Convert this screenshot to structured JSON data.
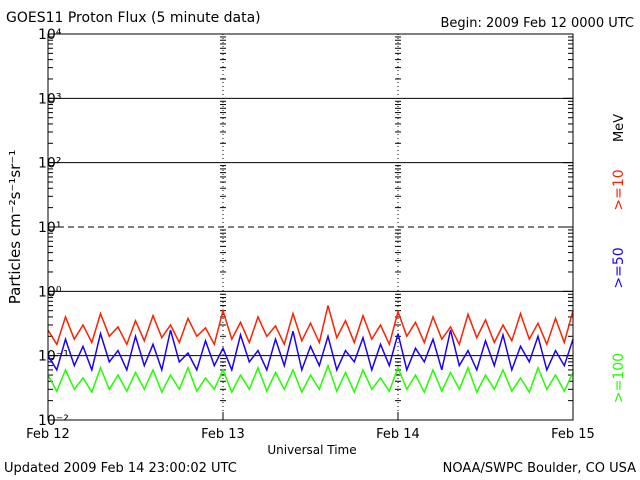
{
  "chart_data": {
    "type": "line",
    "title": "GOES11 Proton Flux (5 minute data)",
    "subtitle": "Begin: 2009 Feb 12 0000 UTC",
    "xlabel": "Universal Time",
    "ylabel": "Particles cm⁻²s⁻¹sr⁻¹",
    "legend_unit": "MeV",
    "footer_left": "Updated 2009 Feb 14 23:00:02 UTC",
    "footer_right": "NOAA/SWPC Boulder, CO USA",
    "log_y": true,
    "ylim": [
      0.01,
      10000
    ],
    "yticks": [
      {
        "value": 0.01,
        "label": "10⁻²"
      },
      {
        "value": 0.1,
        "label": "10⁻¹"
      },
      {
        "value": 1,
        "label": "10⁰"
      },
      {
        "value": 10,
        "label": "10¹"
      },
      {
        "value": 100,
        "label": "10²"
      },
      {
        "value": 1000,
        "label": "10³"
      },
      {
        "value": 10000,
        "label": "10⁴"
      }
    ],
    "grid_lines": [
      0.1,
      1,
      100,
      1000
    ],
    "dashed_grid_lines": [
      10
    ],
    "categories": [
      "Feb 12",
      null,
      null,
      null,
      null,
      null,
      null,
      null,
      null,
      null,
      null,
      null,
      null,
      null,
      null,
      null,
      null,
      null,
      null,
      null,
      "Feb 13",
      null,
      null,
      null,
      null,
      null,
      null,
      null,
      null,
      null,
      null,
      null,
      null,
      null,
      null,
      null,
      null,
      null,
      null,
      null,
      "Feb 14",
      null,
      null,
      null,
      null,
      null,
      null,
      null,
      null,
      null,
      null,
      null,
      null,
      null,
      null,
      null,
      null,
      null,
      null,
      null,
      "Feb 15"
    ],
    "series": [
      {
        "name": ">=10",
        "color": "#ff2000",
        "values": [
          0.25,
          0.15,
          0.4,
          0.18,
          0.3,
          0.16,
          0.45,
          0.2,
          0.28,
          0.15,
          0.35,
          0.17,
          0.42,
          0.19,
          0.3,
          0.16,
          0.38,
          0.2,
          0.27,
          0.15,
          0.5,
          0.18,
          0.33,
          0.16,
          0.4,
          0.2,
          0.29,
          0.15,
          0.45,
          0.17,
          0.32,
          0.16,
          0.6,
          0.19,
          0.35,
          0.16,
          0.42,
          0.18,
          0.3,
          0.15,
          0.48,
          0.2,
          0.33,
          0.16,
          0.4,
          0.18,
          0.28,
          0.15,
          0.44,
          0.19,
          0.36,
          0.16,
          0.3,
          0.17,
          0.45,
          0.18,
          0.32,
          0.15,
          0.38,
          0.16,
          0.5
        ]
      },
      {
        "name": ">=50",
        "color": "#1a00ff",
        "values": [
          0.1,
          0.06,
          0.18,
          0.07,
          0.14,
          0.06,
          0.22,
          0.08,
          0.12,
          0.06,
          0.2,
          0.07,
          0.15,
          0.06,
          0.25,
          0.08,
          0.11,
          0.06,
          0.17,
          0.07,
          0.13,
          0.06,
          0.21,
          0.08,
          0.12,
          0.06,
          0.18,
          0.07,
          0.24,
          0.06,
          0.14,
          0.07,
          0.2,
          0.06,
          0.12,
          0.08,
          0.19,
          0.06,
          0.15,
          0.07,
          0.22,
          0.06,
          0.13,
          0.08,
          0.18,
          0.06,
          0.25,
          0.07,
          0.12,
          0.06,
          0.17,
          0.07,
          0.21,
          0.06,
          0.14,
          0.08,
          0.2,
          0.06,
          0.12,
          0.07,
          0.18
        ]
      },
      {
        "name": ">=100",
        "color": "#22ff00",
        "values": [
          0.05,
          0.028,
          0.06,
          0.03,
          0.045,
          0.027,
          0.065,
          0.03,
          0.05,
          0.028,
          0.055,
          0.03,
          0.06,
          0.027,
          0.05,
          0.03,
          0.065,
          0.028,
          0.045,
          0.03,
          0.06,
          0.027,
          0.05,
          0.03,
          0.065,
          0.028,
          0.055,
          0.03,
          0.06,
          0.027,
          0.05,
          0.03,
          0.07,
          0.028,
          0.055,
          0.027,
          0.06,
          0.03,
          0.045,
          0.028,
          0.065,
          0.03,
          0.05,
          0.027,
          0.06,
          0.028,
          0.055,
          0.03,
          0.065,
          0.027,
          0.05,
          0.03,
          0.06,
          0.028,
          0.045,
          0.027,
          0.065,
          0.03,
          0.05,
          0.028,
          0.055
        ]
      }
    ]
  }
}
